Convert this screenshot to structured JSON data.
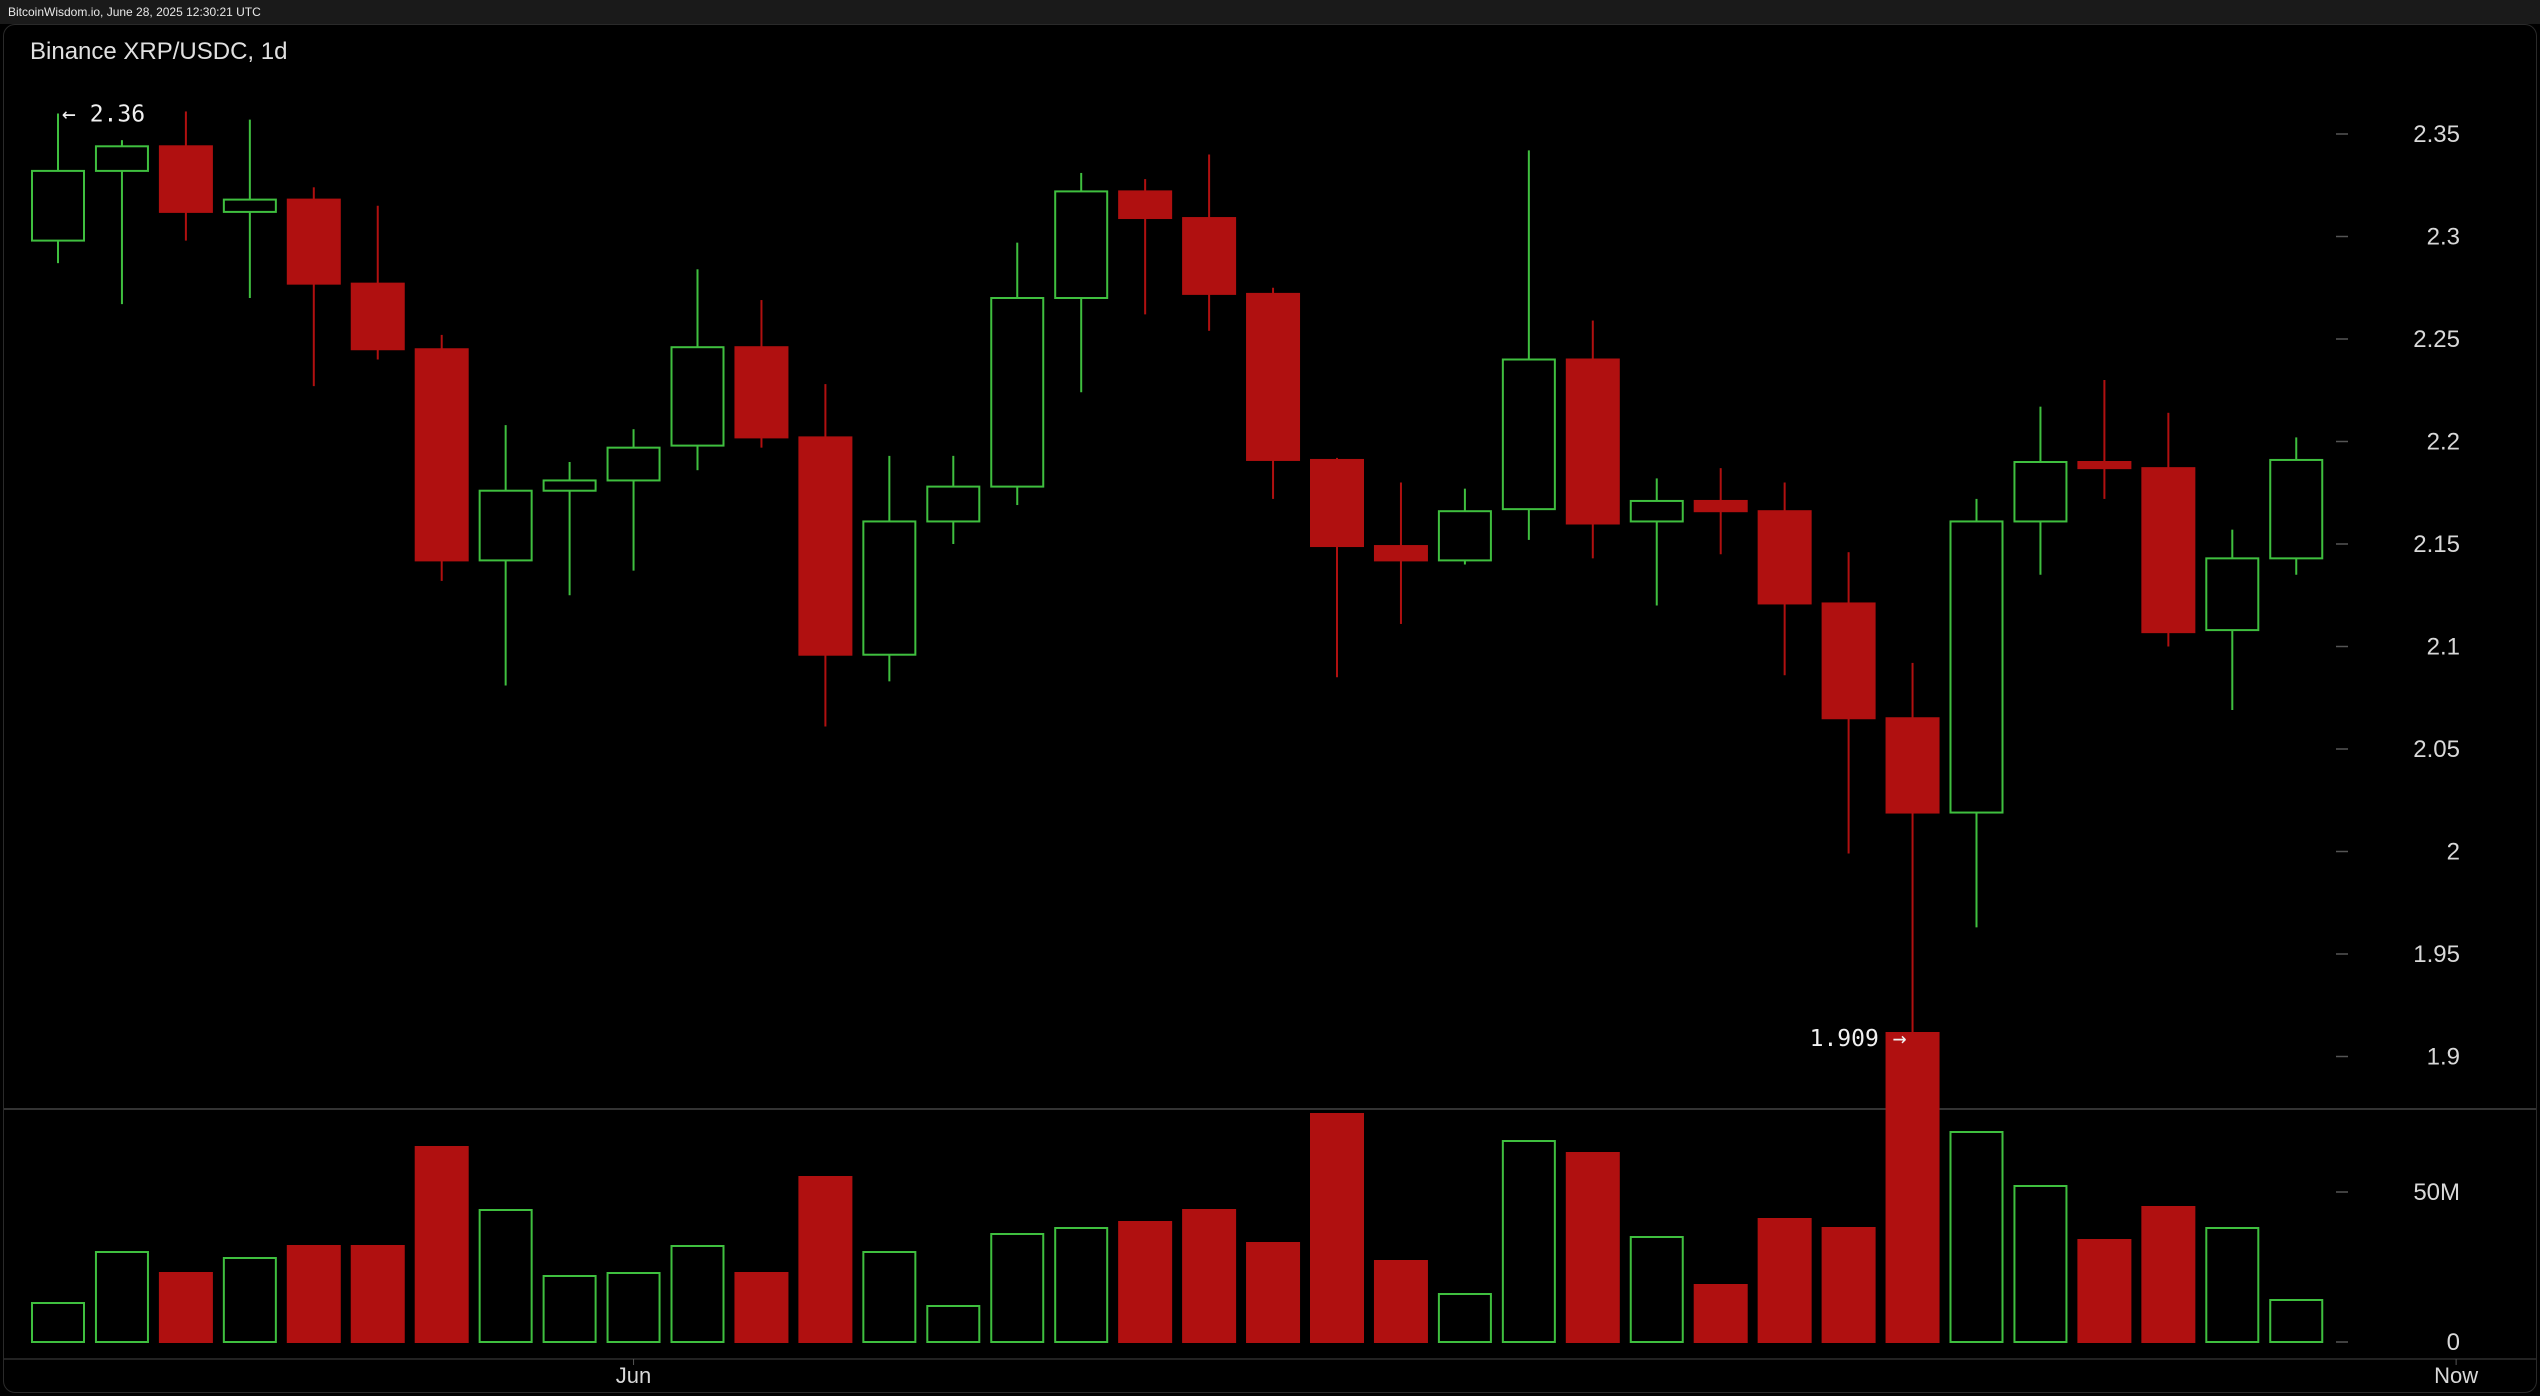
{
  "header": {
    "timestamp": "BitcoinWisdom.io, June 28, 2025 12:30:21 UTC"
  },
  "chart": {
    "title": "Binance XRP/USDC, 1d"
  },
  "colors": {
    "up": "#3fbf3f",
    "down": "#b01010",
    "bg": "#000000",
    "grid": "#444444",
    "text": "#d8d8d8"
  },
  "chart_data": {
    "type": "candlestick",
    "title": "Binance XRP/USDC, 1d",
    "price_axis": {
      "ticks": [
        "2.35",
        "2.3",
        "2.25",
        "2.2",
        "2.15",
        "2.1",
        "2.05",
        "2",
        "1.95",
        "1.9"
      ],
      "range": [
        1.875,
        2.395
      ]
    },
    "volume_axis": {
      "ticks": [
        "50M",
        "0"
      ],
      "range": [
        0,
        75000000
      ]
    },
    "x_labels": [
      {
        "label": "Jun",
        "index": 9
      },
      {
        "label": "Now",
        "index": 37.5
      }
    ],
    "annotations": {
      "high": {
        "value": 2.36,
        "text": "← 2.36",
        "index": 0
      },
      "low": {
        "value": 1.909,
        "text": "1.909 →",
        "index": 29
      }
    },
    "candles": [
      {
        "o": 2.298,
        "h": 2.36,
        "l": 2.287,
        "c": 2.332,
        "v": 13000000
      },
      {
        "o": 2.332,
        "h": 2.347,
        "l": 2.267,
        "c": 2.344,
        "v": 30000000
      },
      {
        "o": 2.344,
        "h": 2.361,
        "l": 2.298,
        "c": 2.312,
        "v": 23000000
      },
      {
        "o": 2.312,
        "h": 2.357,
        "l": 2.27,
        "c": 2.318,
        "v": 28000000
      },
      {
        "o": 2.318,
        "h": 2.324,
        "l": 2.227,
        "c": 2.277,
        "v": 32000000
      },
      {
        "o": 2.277,
        "h": 2.315,
        "l": 2.24,
        "c": 2.245,
        "v": 32000000
      },
      {
        "o": 2.245,
        "h": 2.252,
        "l": 2.132,
        "c": 2.142,
        "v": 65000000
      },
      {
        "o": 2.142,
        "h": 2.208,
        "l": 2.081,
        "c": 2.176,
        "v": 44000000
      },
      {
        "o": 2.176,
        "h": 2.19,
        "l": 2.125,
        "c": 2.181,
        "v": 22000000
      },
      {
        "o": 2.181,
        "h": 2.206,
        "l": 2.137,
        "c": 2.197,
        "v": 23000000
      },
      {
        "o": 2.198,
        "h": 2.284,
        "l": 2.186,
        "c": 2.246,
        "v": 32000000
      },
      {
        "o": 2.246,
        "h": 2.269,
        "l": 2.197,
        "c": 2.202,
        "v": 23000000
      },
      {
        "o": 2.202,
        "h": 2.228,
        "l": 2.061,
        "c": 2.096,
        "v": 55000000
      },
      {
        "o": 2.096,
        "h": 2.193,
        "l": 2.083,
        "c": 2.161,
        "v": 30000000
      },
      {
        "o": 2.161,
        "h": 2.193,
        "l": 2.15,
        "c": 2.178,
        "v": 12000000
      },
      {
        "o": 2.178,
        "h": 2.297,
        "l": 2.169,
        "c": 2.27,
        "v": 36000000
      },
      {
        "o": 2.27,
        "h": 2.331,
        "l": 2.224,
        "c": 2.322,
        "v": 38000000
      },
      {
        "o": 2.322,
        "h": 2.328,
        "l": 2.262,
        "c": 2.309,
        "v": 40000000
      },
      {
        "o": 2.309,
        "h": 2.34,
        "l": 2.254,
        "c": 2.272,
        "v": 44000000
      },
      {
        "o": 2.272,
        "h": 2.275,
        "l": 2.172,
        "c": 2.191,
        "v": 33000000
      },
      {
        "o": 2.191,
        "h": 2.192,
        "l": 2.085,
        "c": 2.149,
        "v": 76000000
      },
      {
        "o": 2.149,
        "h": 2.18,
        "l": 2.111,
        "c": 2.142,
        "v": 27000000
      },
      {
        "o": 2.142,
        "h": 2.177,
        "l": 2.14,
        "c": 2.166,
        "v": 16000000
      },
      {
        "o": 2.167,
        "h": 2.342,
        "l": 2.152,
        "c": 2.24,
        "v": 67000000
      },
      {
        "o": 2.24,
        "h": 2.259,
        "l": 2.143,
        "c": 2.16,
        "v": 63000000
      },
      {
        "o": 2.161,
        "h": 2.182,
        "l": 2.12,
        "c": 2.171,
        "v": 35000000
      },
      {
        "o": 2.171,
        "h": 2.187,
        "l": 2.145,
        "c": 2.166,
        "v": 19000000
      },
      {
        "o": 2.166,
        "h": 2.18,
        "l": 2.086,
        "c": 2.121,
        "v": 41000000
      },
      {
        "o": 2.121,
        "h": 2.146,
        "l": 1.999,
        "c": 2.065,
        "v": 38000000
      },
      {
        "o": 2.065,
        "h": 2.092,
        "l": 1.909,
        "c": 2.019,
        "v": 103000000
      },
      {
        "o": 2.019,
        "h": 2.172,
        "l": 1.963,
        "c": 2.161,
        "v": 70000000
      },
      {
        "o": 2.161,
        "h": 2.217,
        "l": 2.135,
        "c": 2.19,
        "v": 52000000
      },
      {
        "o": 2.19,
        "h": 2.23,
        "l": 2.172,
        "c": 2.187,
        "v": 34000000
      },
      {
        "o": 2.187,
        "h": 2.214,
        "l": 2.1,
        "c": 2.107,
        "v": 45000000
      },
      {
        "o": 2.108,
        "h": 2.157,
        "l": 2.069,
        "c": 2.143,
        "v": 38000000
      },
      {
        "o": 2.143,
        "h": 2.202,
        "l": 2.135,
        "c": 2.191,
        "v": 14000000
      }
    ]
  }
}
